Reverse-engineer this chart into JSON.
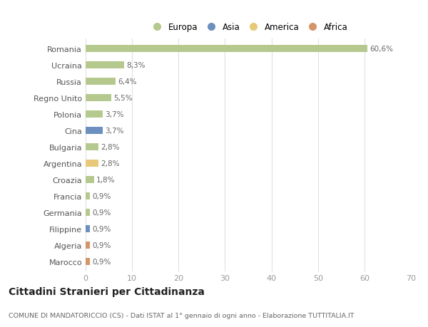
{
  "countries": [
    "Romania",
    "Ucraina",
    "Russia",
    "Regno Unito",
    "Polonia",
    "Cina",
    "Bulgaria",
    "Argentina",
    "Croazia",
    "Francia",
    "Germania",
    "Filippine",
    "Algeria",
    "Marocco"
  ],
  "values": [
    60.6,
    8.3,
    6.4,
    5.5,
    3.7,
    3.7,
    2.8,
    2.8,
    1.8,
    0.9,
    0.9,
    0.9,
    0.9,
    0.9
  ],
  "labels": [
    "60,6%",
    "8,3%",
    "6,4%",
    "5,5%",
    "3,7%",
    "3,7%",
    "2,8%",
    "2,8%",
    "1,8%",
    "0,9%",
    "0,9%",
    "0,9%",
    "0,9%",
    "0,9%"
  ],
  "colors": [
    "#b5c98e",
    "#b5c98e",
    "#b5c98e",
    "#b5c98e",
    "#b5c98e",
    "#6b8fbf",
    "#b5c98e",
    "#e8c97a",
    "#b5c98e",
    "#b5c98e",
    "#b5c98e",
    "#6b8fbf",
    "#d4956a",
    "#d4956a"
  ],
  "legend_labels": [
    "Europa",
    "Asia",
    "America",
    "Africa"
  ],
  "legend_colors": [
    "#b5c98e",
    "#6b8fbf",
    "#e8c97a",
    "#d4956a"
  ],
  "title": "Cittadini Stranieri per Cittadinanza",
  "subtitle": "COMUNE DI MANDATORICCIO (CS) - Dati ISTAT al 1° gennaio di ogni anno - Elaborazione TUTTITALIA.IT",
  "xlim": [
    0,
    70
  ],
  "xticks": [
    0,
    10,
    20,
    30,
    40,
    50,
    60,
    70
  ],
  "bg_color": "#ffffff",
  "grid_color": "#e0e0e0",
  "bar_height": 0.45
}
